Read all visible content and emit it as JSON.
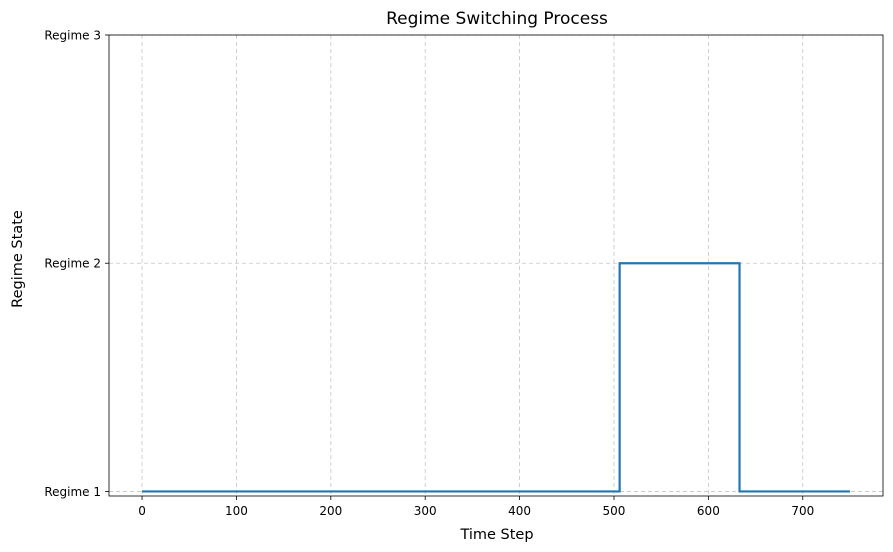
{
  "chart_data": {
    "type": "line",
    "step": true,
    "title": "Regime Switching Process",
    "xlabel": "Time Step",
    "ylabel": "Regime State",
    "xlim": [
      -35,
      785
    ],
    "ylim": [
      0.98,
      3.0
    ],
    "xticks": [
      0,
      100,
      200,
      300,
      400,
      500,
      600,
      700
    ],
    "xtick_labels": [
      "0",
      "100",
      "200",
      "300",
      "400",
      "500",
      "600",
      "700"
    ],
    "yticks": [
      1,
      2,
      3
    ],
    "ytick_labels": [
      "Regime 1",
      "Regime 2",
      "Regime 3"
    ],
    "grid": true,
    "series": [
      {
        "color": "#1f77b4",
        "x": [
          0,
          506,
          506,
          633,
          633,
          750
        ],
        "y": [
          1,
          1,
          2,
          2,
          1,
          1
        ]
      }
    ]
  }
}
